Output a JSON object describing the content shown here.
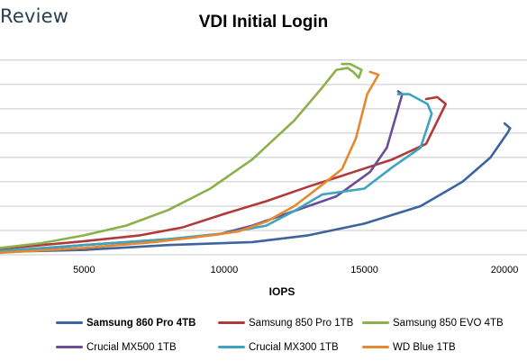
{
  "brand": "Review",
  "chart_data": {
    "type": "line",
    "title": "VDI Initial Login",
    "xlabel": "IOPS",
    "ylabel": "",
    "xlim": [
      2000,
      20800
    ],
    "ylim": [
      0,
      210
    ],
    "x_ticks": [
      5000,
      10000,
      15000,
      20000
    ],
    "y_gridlines": [
      0,
      25,
      50,
      75,
      100,
      125,
      150,
      175,
      200
    ],
    "y_tick_labels_visible": false,
    "grid": true,
    "legend_position": "bottom",
    "series": [
      {
        "name": "Samsung 860 Pro 4TB",
        "color": "#3c64a0",
        "bold": true,
        "points": [
          [
            2000,
            3
          ],
          [
            5000,
            5
          ],
          [
            8000,
            10
          ],
          [
            11000,
            13
          ],
          [
            13000,
            20
          ],
          [
            15000,
            32
          ],
          [
            17000,
            50
          ],
          [
            18500,
            75
          ],
          [
            19500,
            100
          ],
          [
            20100,
            125
          ],
          [
            20200,
            130
          ],
          [
            20000,
            135
          ]
        ]
      },
      {
        "name": "Samsung 850 Pro 1TB",
        "color": "#b03a3a",
        "bold": false,
        "points": [
          [
            2000,
            6
          ],
          [
            5000,
            14
          ],
          [
            7000,
            20
          ],
          [
            8500,
            28
          ],
          [
            10000,
            42
          ],
          [
            11500,
            55
          ],
          [
            13000,
            70
          ],
          [
            14500,
            84
          ],
          [
            16000,
            98
          ],
          [
            17200,
            114
          ],
          [
            17900,
            155
          ],
          [
            17600,
            162
          ],
          [
            17200,
            160
          ]
        ]
      },
      {
        "name": "Samsung 850 EVO 4TB",
        "color": "#8cb04a",
        "bold": false,
        "points": [
          [
            2000,
            7
          ],
          [
            3500,
            12
          ],
          [
            5000,
            20
          ],
          [
            6500,
            30
          ],
          [
            8000,
            46
          ],
          [
            9500,
            68
          ],
          [
            11000,
            98
          ],
          [
            12500,
            138
          ],
          [
            13500,
            172
          ],
          [
            14000,
            190
          ],
          [
            14400,
            192
          ],
          [
            14600,
            188
          ],
          [
            14800,
            182
          ],
          [
            14900,
            190
          ],
          [
            14500,
            196
          ],
          [
            14200,
            196
          ]
        ]
      },
      {
        "name": "Crucial MX500 1TB",
        "color": "#6a4e96",
        "bold": false,
        "points": [
          [
            2000,
            3
          ],
          [
            5000,
            10
          ],
          [
            7000,
            14
          ],
          [
            8500,
            17
          ],
          [
            9800,
            21
          ],
          [
            11000,
            30
          ],
          [
            12500,
            45
          ],
          [
            14000,
            60
          ],
          [
            15200,
            85
          ],
          [
            15800,
            110
          ],
          [
            16200,
            150
          ],
          [
            16350,
            165
          ],
          [
            16200,
            168
          ]
        ]
      },
      {
        "name": "Crucial MX300 1TB",
        "color": "#3ca4c0",
        "bold": false,
        "points": [
          [
            2000,
            4
          ],
          [
            4000,
            8
          ],
          [
            6000,
            12
          ],
          [
            8000,
            16
          ],
          [
            10000,
            22
          ],
          [
            11500,
            30
          ],
          [
            12500,
            45
          ],
          [
            13500,
            62
          ],
          [
            15000,
            68
          ],
          [
            16000,
            90
          ],
          [
            17000,
            110
          ],
          [
            17400,
            145
          ],
          [
            17250,
            155
          ],
          [
            16600,
            165
          ],
          [
            16200,
            165
          ]
        ]
      },
      {
        "name": "WD Blue 1TB",
        "color": "#e6892e",
        "bold": false,
        "points": [
          [
            2000,
            2
          ],
          [
            5000,
            7
          ],
          [
            7500,
            13
          ],
          [
            9000,
            18
          ],
          [
            10500,
            24
          ],
          [
            11500,
            34
          ],
          [
            12500,
            50
          ],
          [
            13500,
            72
          ],
          [
            14200,
            88
          ],
          [
            14700,
            120
          ],
          [
            15100,
            165
          ],
          [
            15400,
            180
          ],
          [
            15500,
            185
          ],
          [
            15200,
            188
          ]
        ]
      }
    ]
  }
}
